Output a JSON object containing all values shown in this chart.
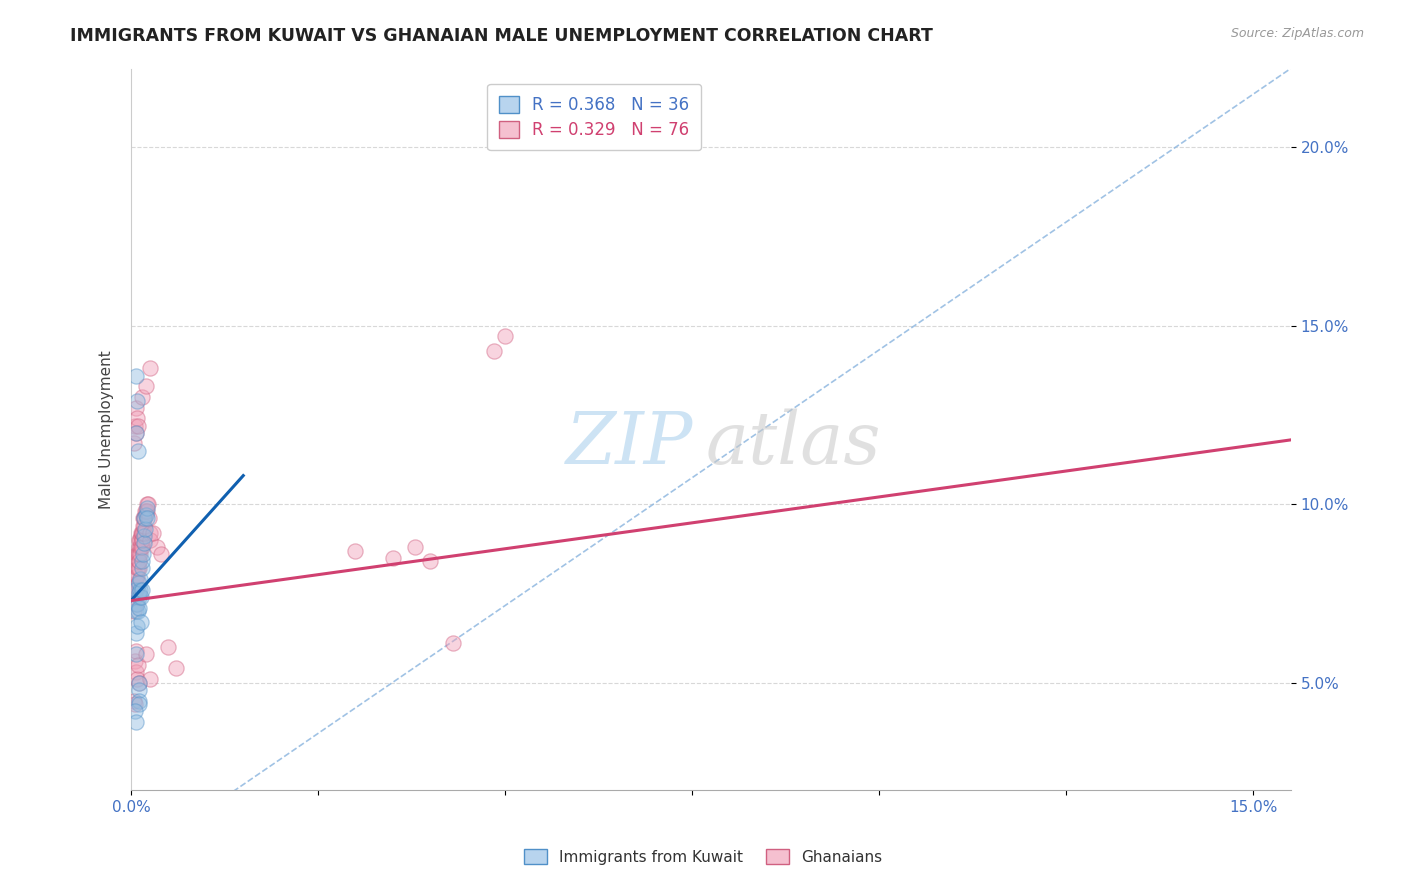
{
  "title": "IMMIGRANTS FROM KUWAIT VS GHANAIAN MALE UNEMPLOYMENT CORRELATION CHART",
  "source": "Source: ZipAtlas.com",
  "ylabel": "Male Unemployment",
  "xlim": [
    0.0,
    0.155
  ],
  "ylim": [
    0.02,
    0.222
  ],
  "yticks": [
    0.05,
    0.1,
    0.15,
    0.2
  ],
  "yticklabels": [
    "5.0%",
    "10.0%",
    "15.0%",
    "20.0%"
  ],
  "xticks": [
    0.0,
    0.025,
    0.05,
    0.075,
    0.1,
    0.125,
    0.15
  ],
  "xticklabels": [
    "0.0%",
    "",
    "",
    "",
    "",
    "",
    "15.0%"
  ],
  "legend_r1": "R = 0.368   N = 36",
  "legend_r2": "R = 0.329   N = 76",
  "blue_scatter": [
    [
      0.0005,
      0.076
    ],
    [
      0.0006,
      0.07
    ],
    [
      0.0007,
      0.064
    ],
    [
      0.0007,
      0.058
    ],
    [
      0.0008,
      0.066
    ],
    [
      0.0008,
      0.072
    ],
    [
      0.0009,
      0.07
    ],
    [
      0.001,
      0.074
    ],
    [
      0.001,
      0.078
    ],
    [
      0.0011,
      0.075
    ],
    [
      0.0011,
      0.071
    ],
    [
      0.0012,
      0.076
    ],
    [
      0.0012,
      0.079
    ],
    [
      0.0013,
      0.067
    ],
    [
      0.0013,
      0.074
    ],
    [
      0.0014,
      0.082
    ],
    [
      0.0015,
      0.084
    ],
    [
      0.0015,
      0.076
    ],
    [
      0.0016,
      0.086
    ],
    [
      0.0017,
      0.091
    ],
    [
      0.0018,
      0.089
    ],
    [
      0.0018,
      0.096
    ],
    [
      0.0019,
      0.093
    ],
    [
      0.002,
      0.097
    ],
    [
      0.0021,
      0.099
    ],
    [
      0.0021,
      0.096
    ],
    [
      0.001,
      0.05
    ],
    [
      0.001,
      0.048
    ],
    [
      0.0011,
      0.045
    ],
    [
      0.0011,
      0.044
    ],
    [
      0.0007,
      0.136
    ],
    [
      0.0008,
      0.129
    ],
    [
      0.0006,
      0.12
    ],
    [
      0.0009,
      0.115
    ],
    [
      0.0005,
      0.042
    ],
    [
      0.0006,
      0.039
    ]
  ],
  "pink_scatter": [
    [
      0.0004,
      0.07
    ],
    [
      0.0005,
      0.074
    ],
    [
      0.0005,
      0.077
    ],
    [
      0.0006,
      0.072
    ],
    [
      0.0006,
      0.078
    ],
    [
      0.0007,
      0.076
    ],
    [
      0.0007,
      0.08
    ],
    [
      0.0007,
      0.084
    ],
    [
      0.0008,
      0.08
    ],
    [
      0.0008,
      0.082
    ],
    [
      0.0008,
      0.086
    ],
    [
      0.0009,
      0.078
    ],
    [
      0.0009,
      0.082
    ],
    [
      0.0009,
      0.086
    ],
    [
      0.001,
      0.084
    ],
    [
      0.001,
      0.088
    ],
    [
      0.001,
      0.082
    ],
    [
      0.0011,
      0.086
    ],
    [
      0.0011,
      0.09
    ],
    [
      0.0011,
      0.084
    ],
    [
      0.0012,
      0.088
    ],
    [
      0.0012,
      0.086
    ],
    [
      0.0012,
      0.09
    ],
    [
      0.0013,
      0.088
    ],
    [
      0.0013,
      0.091
    ],
    [
      0.0013,
      0.092
    ],
    [
      0.0014,
      0.09
    ],
    [
      0.0014,
      0.088
    ],
    [
      0.0014,
      0.092
    ],
    [
      0.0015,
      0.09
    ],
    [
      0.0015,
      0.092
    ],
    [
      0.0016,
      0.094
    ],
    [
      0.0016,
      0.096
    ],
    [
      0.0017,
      0.092
    ],
    [
      0.0017,
      0.096
    ],
    [
      0.0018,
      0.094
    ],
    [
      0.0018,
      0.096
    ],
    [
      0.0019,
      0.098
    ],
    [
      0.002,
      0.098
    ],
    [
      0.0021,
      0.1
    ],
    [
      0.0022,
      0.098
    ],
    [
      0.0023,
      0.1
    ],
    [
      0.0024,
      0.096
    ],
    [
      0.0025,
      0.092
    ],
    [
      0.0026,
      0.09
    ],
    [
      0.003,
      0.092
    ],
    [
      0.0035,
      0.088
    ],
    [
      0.004,
      0.086
    ],
    [
      0.0004,
      0.117
    ],
    [
      0.0005,
      0.122
    ],
    [
      0.0006,
      0.127
    ],
    [
      0.0007,
      0.12
    ],
    [
      0.0008,
      0.124
    ],
    [
      0.0009,
      0.122
    ],
    [
      0.0005,
      0.056
    ],
    [
      0.0006,
      0.059
    ],
    [
      0.0007,
      0.053
    ],
    [
      0.0008,
      0.051
    ],
    [
      0.0009,
      0.055
    ],
    [
      0.001,
      0.05
    ],
    [
      0.002,
      0.058
    ],
    [
      0.0025,
      0.051
    ],
    [
      0.0015,
      0.13
    ],
    [
      0.002,
      0.133
    ],
    [
      0.0025,
      0.138
    ],
    [
      0.0485,
      0.143
    ],
    [
      0.05,
      0.147
    ],
    [
      0.038,
      0.088
    ],
    [
      0.04,
      0.084
    ],
    [
      0.005,
      0.06
    ],
    [
      0.006,
      0.054
    ],
    [
      0.043,
      0.061
    ],
    [
      0.0004,
      0.045
    ],
    [
      0.0005,
      0.044
    ],
    [
      0.03,
      0.087
    ],
    [
      0.035,
      0.085
    ]
  ],
  "blue_trend": [
    0.0,
    0.015,
    0.073,
    0.108
  ],
  "pink_trend": [
    0.0,
    0.155,
    0.073,
    0.118
  ],
  "ref_line": [
    0.0,
    0.155,
    0.0,
    0.222
  ],
  "blue_color": "#90bce0",
  "blue_edge": "#5090c8",
  "pink_color": "#f0a0b8",
  "pink_edge": "#d06080",
  "blue_trend_color": "#1060b0",
  "pink_trend_color": "#d04070",
  "ref_line_color": "#90b8e0",
  "grid_color": "#d8d8d8",
  "background_color": "#ffffff",
  "title_fontsize": 12.5,
  "tick_fontsize": 11,
  "ylabel_fontsize": 11,
  "scatter_size": 120,
  "scatter_alpha": 0.45
}
